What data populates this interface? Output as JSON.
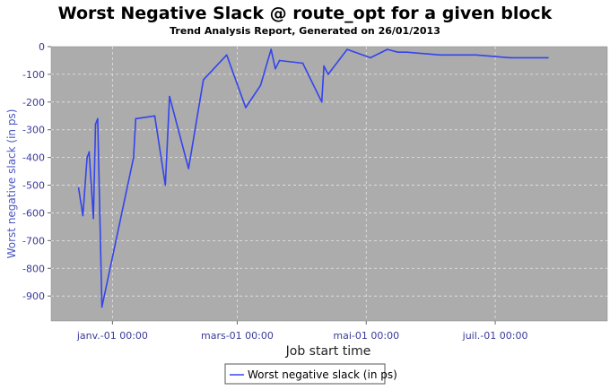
{
  "chart_data": {
    "type": "line",
    "title": "Worst Negative Slack @ route_opt for a given block",
    "subtitle": "Trend Analysis Report, Generated on 26/01/2013",
    "xlabel": "Job start time",
    "ylabel": "Worst negative slack (in ps)",
    "x_ticks": [
      {
        "date": "2013-01-01T00:00",
        "label": "janv.-01 00:00"
      },
      {
        "date": "2013-03-01T00:00",
        "label": "mars-01 00:00"
      },
      {
        "date": "2013-05-01T00:00",
        "label": "mai-01 00:00"
      },
      {
        "date": "2013-07-01T00:00",
        "label": "juil.-01 00:00"
      }
    ],
    "xlim": [
      "2012-12-03T00:00",
      "2013-08-23T00:00"
    ],
    "y_ticks": [
      0,
      -100,
      -200,
      -300,
      -400,
      -500,
      -600,
      -700,
      -800,
      -900
    ],
    "ylim": [
      -990,
      0
    ],
    "grid": true,
    "legend_position": "bottom",
    "colors": {
      "line": "#3344ee",
      "plot_bg": "#acacac",
      "grid": "#e6e6e6"
    },
    "series": [
      {
        "name": "Worst negative slack (in ps)",
        "x": [
          "2012-12-16",
          "2012-12-18",
          "2012-12-20",
          "2012-12-21",
          "2012-12-23",
          "2012-12-24",
          "2012-12-25",
          "2012-12-27",
          "2013-01-11",
          "2013-01-12",
          "2013-01-21",
          "2013-01-26",
          "2013-01-28",
          "2013-02-06",
          "2013-02-13",
          "2013-02-24",
          "2013-03-05",
          "2013-03-12",
          "2013-03-17",
          "2013-03-19",
          "2013-03-21",
          "2013-04-01",
          "2013-04-10",
          "2013-04-11",
          "2013-04-13",
          "2013-04-22",
          "2013-05-03",
          "2013-05-11",
          "2013-05-16",
          "2013-05-20",
          "2013-06-05",
          "2013-06-22",
          "2013-07-08",
          "2013-07-26"
        ],
        "values": [
          -510,
          -610,
          -400,
          -380,
          -620,
          -280,
          -260,
          -940,
          -400,
          -260,
          -250,
          -500,
          -180,
          -440,
          -120,
          -30,
          -220,
          -140,
          -10,
          -80,
          -50,
          -60,
          -200,
          -70,
          -100,
          -10,
          -40,
          -10,
          -20,
          -20,
          -30,
          -30,
          -40,
          -40
        ]
      }
    ]
  }
}
